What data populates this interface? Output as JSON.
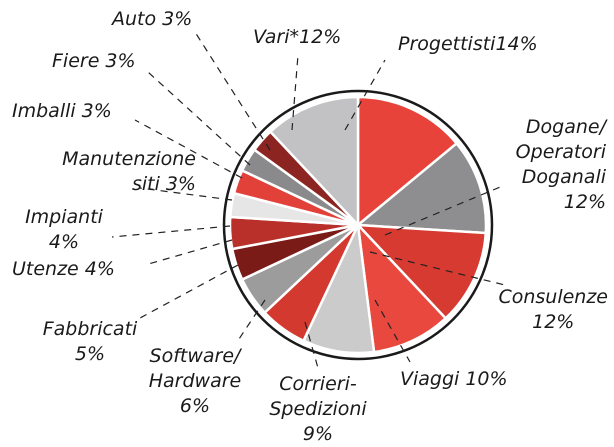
{
  "chart_data": {
    "type": "pie",
    "categories": [
      "Progettisti",
      "Dogane/\nOperatori\nDoganali",
      "Consulenze",
      "Viaggi",
      "Corrieri-\nSpedizioni",
      "Software/\nHardware",
      "Fabbricati",
      "Utenze",
      "Impianti",
      "Manutenzione\nsiti",
      "Imballi",
      "Fiere",
      "Auto",
      "Vari*"
    ],
    "values": [
      14,
      12,
      12,
      10,
      9,
      6,
      5,
      4,
      4,
      3,
      3,
      3,
      3,
      12
    ],
    "value_labels": [
      "14%",
      "12%",
      "12%",
      "10%",
      "9%",
      "6%",
      "5%",
      "4%",
      "4%",
      "3%",
      "3%",
      "3%",
      "3%",
      "12%"
    ],
    "colors": [
      "#e8433a",
      "#8e8e90",
      "#d73a31",
      "#e9483e",
      "#cbcbcb",
      "#d4392f",
      "#9c9c9c",
      "#7a1b18",
      "#b9302a",
      "#e6e6e6",
      "#e2413a",
      "#8a8a8c",
      "#8c2521",
      "#c2c2c4"
    ]
  }
}
